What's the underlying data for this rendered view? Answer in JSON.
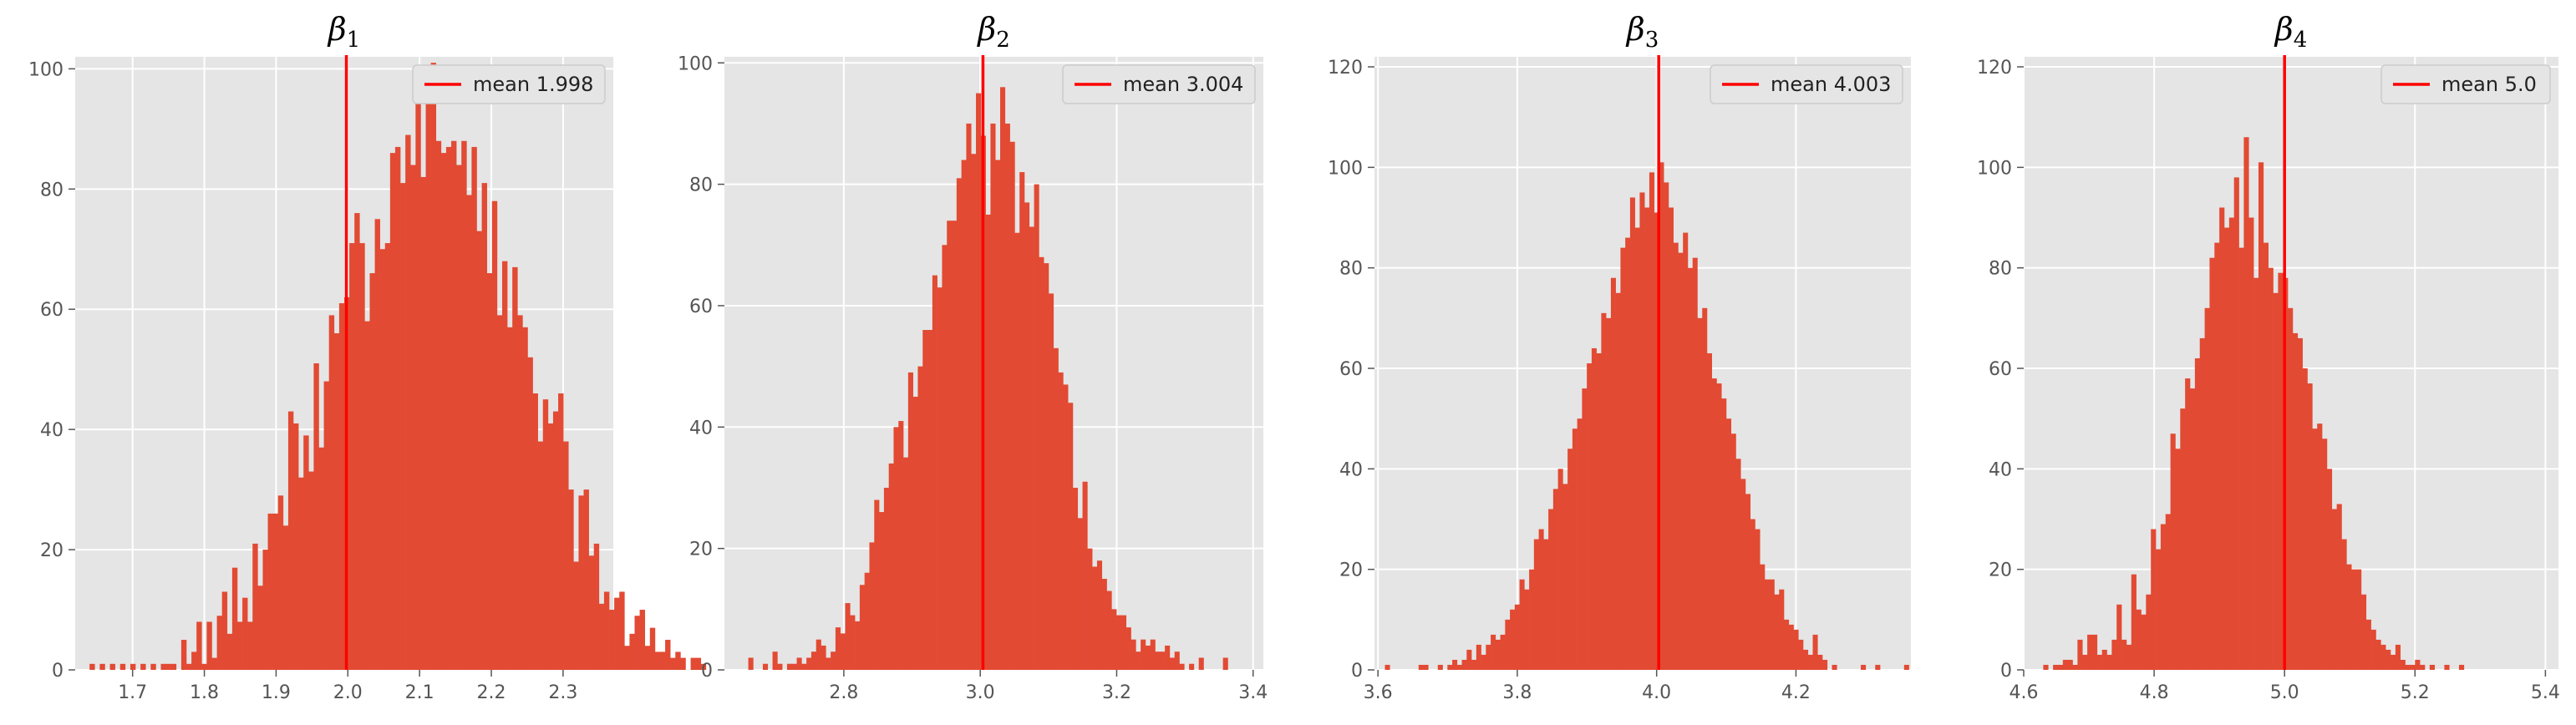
{
  "style": {
    "panel_bg": "#e5e5e5",
    "grid_color": "#ffffff",
    "bar_color": "#e24a33",
    "mean_line_color": "#ff0000",
    "tick_color": "#555555"
  },
  "chart_data": [
    {
      "type": "bar",
      "title_symbol": "β",
      "title_subscript": "1",
      "legend": "mean 1.998",
      "legend_position": "top-right",
      "grid": true,
      "mean": 1.998,
      "xlim": [
        1.62,
        2.37
      ],
      "ylim": [
        0,
        102
      ],
      "xticks": [
        1.7,
        1.8,
        1.9,
        2.0,
        2.1,
        2.2,
        2.3
      ],
      "xtick_labels": [
        "1.7",
        "1.8",
        "1.9",
        "2.0",
        "2.1",
        "2.2",
        "2.3"
      ],
      "yticks": [
        0,
        20,
        40,
        60,
        80,
        100
      ],
      "ytick_labels": [
        "0",
        "20",
        "40",
        "60",
        "80",
        "100"
      ],
      "bins": {
        "start": 1.64,
        "width": 0.0071,
        "counts": [
          1,
          0,
          1,
          0,
          1,
          0,
          1,
          0,
          1,
          0,
          1,
          0,
          1,
          0,
          1,
          1,
          1,
          0,
          5,
          1,
          3,
          8,
          1,
          8,
          2,
          9,
          13,
          6,
          17,
          8,
          12,
          8,
          21,
          14,
          20,
          26,
          26,
          29,
          24,
          43,
          41,
          32,
          39,
          33,
          51,
          37,
          48,
          59,
          56,
          61,
          62,
          71,
          76,
          71,
          58,
          66,
          75,
          70,
          71,
          86,
          87,
          81,
          89,
          84,
          98,
          82,
          96,
          101,
          88,
          86,
          87,
          88,
          84,
          88,
          79,
          87,
          73,
          81,
          66,
          78,
          59,
          68,
          57,
          67,
          59,
          57,
          52,
          46,
          38,
          45,
          41,
          43,
          46,
          38,
          30,
          18,
          29,
          30,
          19,
          21,
          11,
          13,
          10,
          12,
          13,
          4,
          6,
          9,
          10,
          4,
          7,
          3,
          3,
          5,
          2,
          3,
          2,
          0,
          2,
          2,
          1,
          0,
          0,
          0,
          0,
          0,
          0,
          0,
          0,
          0,
          0,
          0,
          1
        ]
      }
    },
    {
      "type": "bar",
      "title_symbol": "β",
      "title_subscript": "2",
      "legend": "mean 3.004",
      "legend_position": "top-right",
      "grid": true,
      "mean": 3.004,
      "xlim": [
        2.625,
        3.415
      ],
      "ylim": [
        0,
        101
      ],
      "xticks": [
        2.8,
        3.0,
        3.2,
        3.4
      ],
      "xtick_labels": [
        "2.8",
        "3.0",
        "3.2",
        "3.4"
      ],
      "yticks": [
        0,
        20,
        40,
        60,
        80,
        100
      ],
      "ytick_labels": [
        "0",
        "20",
        "40",
        "60",
        "80",
        "100"
      ],
      "bins": {
        "start": 2.66,
        "width": 0.0071,
        "counts": [
          2,
          0,
          0,
          1,
          0,
          3,
          1,
          0,
          1,
          1,
          2,
          1,
          2,
          3,
          5,
          4,
          2,
          3,
          7,
          6,
          11,
          9,
          8,
          14,
          16,
          21,
          28,
          26,
          30,
          34,
          40,
          41,
          35,
          49,
          45,
          50,
          56,
          56,
          65,
          63,
          70,
          74,
          74,
          81,
          84,
          90,
          85,
          95,
          88,
          75,
          90,
          84,
          96,
          90,
          87,
          72,
          82,
          77,
          73,
          80,
          68,
          67,
          62,
          53,
          49,
          47,
          44,
          30,
          25,
          31,
          20,
          17,
          18,
          15,
          13,
          10,
          9,
          9,
          7,
          5,
          3,
          5,
          4,
          5,
          3,
          3,
          4,
          2,
          3,
          1,
          0,
          1,
          0,
          2,
          0,
          0,
          0,
          0,
          2
        ]
      }
    },
    {
      "type": "bar",
      "title_symbol": "β",
      "title_subscript": "3",
      "legend": "mean 4.003",
      "legend_position": "top-right",
      "grid": true,
      "mean": 4.003,
      "xlim": [
        3.595,
        4.365
      ],
      "ylim": [
        0,
        122
      ],
      "xticks": [
        3.6,
        3.8,
        4.0,
        4.2
      ],
      "xtick_labels": [
        "3.6",
        "3.8",
        "4.0",
        "4.2"
      ],
      "yticks": [
        0,
        20,
        40,
        60,
        80,
        100,
        120
      ],
      "ytick_labels": [
        "0",
        "20",
        "40",
        "60",
        "80",
        "100",
        "120"
      ],
      "bins": {
        "start": 3.61,
        "width": 0.0069,
        "counts": [
          1,
          0,
          0,
          0,
          0,
          0,
          0,
          1,
          1,
          0,
          0,
          1,
          0,
          1,
          2,
          1,
          2,
          4,
          2,
          5,
          3,
          5,
          7,
          6,
          7,
          10,
          12,
          13,
          18,
          16,
          20,
          26,
          28,
          26,
          32,
          36,
          40,
          37,
          44,
          48,
          50,
          56,
          61,
          64,
          63,
          71,
          70,
          78,
          75,
          84,
          86,
          94,
          88,
          95,
          92,
          99,
          91,
          101,
          97,
          92,
          85,
          83,
          87,
          80,
          82,
          70,
          72,
          63,
          58,
          57,
          54,
          50,
          47,
          42,
          38,
          35,
          30,
          28,
          21,
          18,
          18,
          15,
          16,
          10,
          9,
          8,
          6,
          4,
          3,
          7,
          3,
          2,
          0,
          1,
          0,
          0,
          0,
          0,
          0,
          1,
          0,
          0,
          1,
          0,
          0,
          0,
          0,
          0,
          1
        ]
      }
    },
    {
      "type": "bar",
      "title_symbol": "β",
      "title_subscript": "4",
      "legend": "mean 5.0",
      "legend_position": "top-right",
      "grid": true,
      "mean": 5.0,
      "xlim": [
        4.6,
        5.42
      ],
      "ylim": [
        0,
        122
      ],
      "xticks": [
        4.6,
        4.8,
        5.0,
        5.2,
        5.4
      ],
      "xtick_labels": [
        "4.6",
        "4.8",
        "5.0",
        "5.2",
        "5.4"
      ],
      "yticks": [
        0,
        20,
        40,
        60,
        80,
        100,
        120
      ],
      "ytick_labels": [
        "0",
        "20",
        "40",
        "60",
        "80",
        "100",
        "120"
      ],
      "bins": {
        "start": 4.63,
        "width": 0.0075,
        "counts": [
          1,
          0,
          1,
          1,
          2,
          2,
          1,
          6,
          3,
          7,
          7,
          3,
          4,
          3,
          6,
          13,
          6,
          5,
          19,
          12,
          11,
          15,
          28,
          24,
          29,
          31,
          47,
          44,
          52,
          58,
          56,
          62,
          66,
          72,
          82,
          85,
          92,
          88,
          90,
          98,
          84,
          106,
          90,
          78,
          101,
          85,
          80,
          75,
          79,
          78,
          72,
          67,
          66,
          60,
          57,
          48,
          49,
          46,
          40,
          32,
          33,
          26,
          21,
          20,
          20,
          15,
          10,
          8,
          6,
          5,
          4,
          3,
          5,
          2,
          1,
          1,
          2,
          1,
          0,
          1,
          0,
          0,
          1,
          0,
          0,
          1
        ]
      }
    }
  ]
}
